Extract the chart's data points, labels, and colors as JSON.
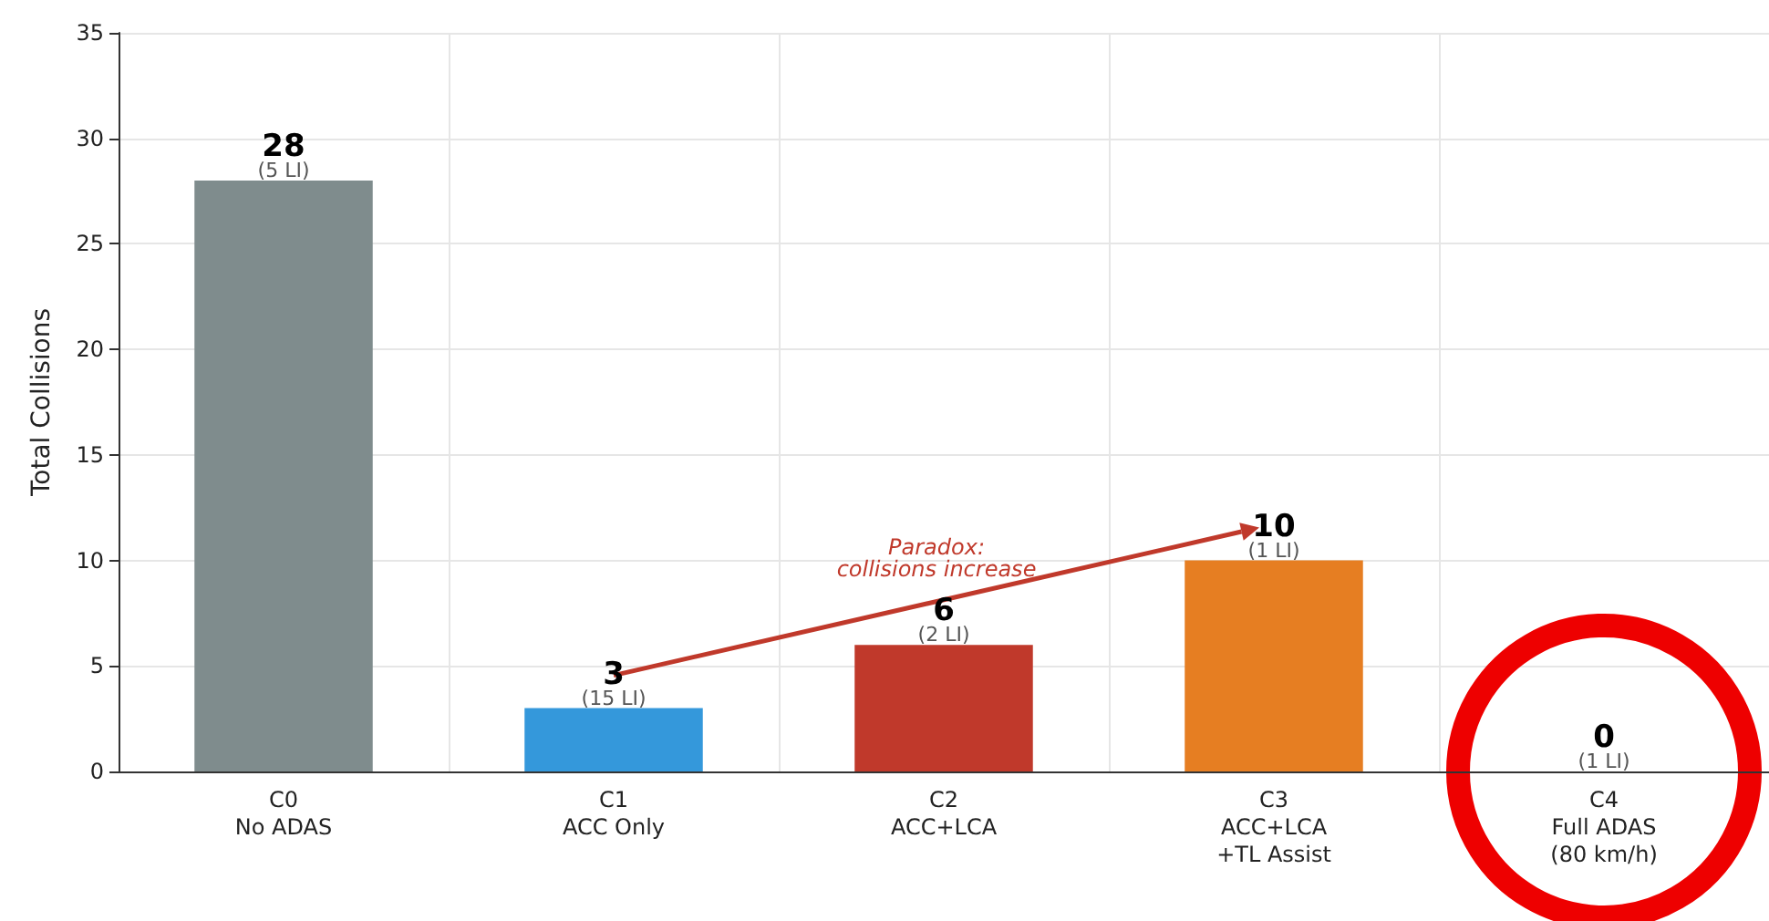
{
  "chart_data": {
    "type": "bar",
    "ylabel": "Total Collisions",
    "categories": [
      "C0\nNo ADAS",
      "C1\nACC Only",
      "C2\nACC+LCA",
      "C3\nACC+LCA\n+TL Assist",
      "C4\nFull ADAS\n(80 km/h)"
    ],
    "values": [
      28,
      3,
      6,
      10,
      0
    ],
    "colors": [
      "#7f8c8d",
      "#3498db",
      "#c0392b",
      "#e67e22",
      "#9b59b6"
    ],
    "data_labels": true,
    "ylim": [
      0,
      35
    ],
    "yticks": [
      0,
      5,
      10,
      15,
      20,
      25,
      30,
      35
    ],
    "grid": true,
    "annotations": [
      {
        "text": "(5 LI)",
        "x": "C0\nNo ADAS",
        "y": 28
      },
      {
        "text": "(15 LI)",
        "x": "C1\nACC Only",
        "y": 3
      },
      {
        "text": "(2 LI)",
        "x": "C2\nACC+LCA",
        "y": 6
      },
      {
        "text": "(1 LI)",
        "x": "C3\nACC+LCA\n+TL Assist",
        "y": 10
      },
      {
        "text": "(1 LI)",
        "x": "C4\nFull ADAS\n(80 km/h)",
        "y": 0
      },
      "Paradox:\ncollisions increase"
    ]
  }
}
